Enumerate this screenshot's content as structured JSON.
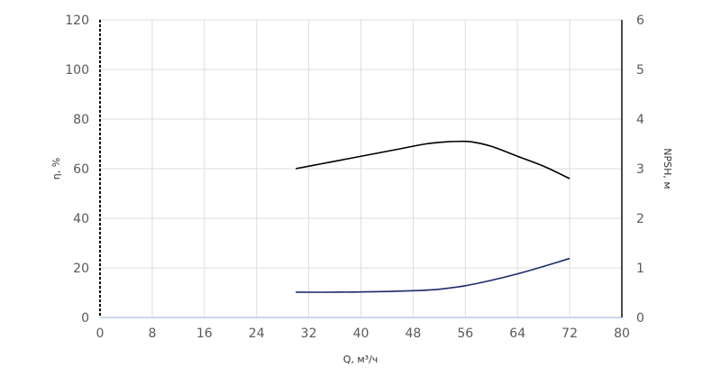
{
  "chart_data": {
    "type": "line",
    "xlabel": "Q, м³/ч",
    "ylabel_left": "η, %",
    "ylabel_right": "NPSH, м",
    "xlim": [
      0,
      80
    ],
    "ylim_left": [
      0,
      120
    ],
    "ylim_right": [
      0,
      6
    ],
    "x_ticks": [
      "0",
      "8",
      "16",
      "24",
      "32",
      "40",
      "48",
      "56",
      "64",
      "72",
      "80"
    ],
    "y_left_ticks": [
      "0",
      "20",
      "40",
      "60",
      "80",
      "100",
      "120"
    ],
    "y_right_ticks": [
      "0",
      "1",
      "2",
      "3",
      "4",
      "5",
      "6"
    ],
    "grid": true,
    "series": [
      {
        "axis": "left",
        "color": "#000000",
        "x": [
          30,
          34,
          38,
          42,
          46,
          50,
          53,
          55,
          57,
          60,
          64,
          68,
          72
        ],
        "y": [
          60,
          62,
          64,
          66,
          68,
          70,
          70.8,
          71,
          70.8,
          69,
          65,
          61,
          56
        ]
      },
      {
        "axis": "right",
        "color": "#1b2a6b",
        "x": [
          30,
          36,
          42,
          48,
          52,
          56,
          60,
          64,
          68,
          72
        ],
        "y": [
          0.51,
          0.51,
          0.52,
          0.54,
          0.57,
          0.64,
          0.75,
          0.88,
          1.03,
          1.19
        ]
      }
    ]
  }
}
